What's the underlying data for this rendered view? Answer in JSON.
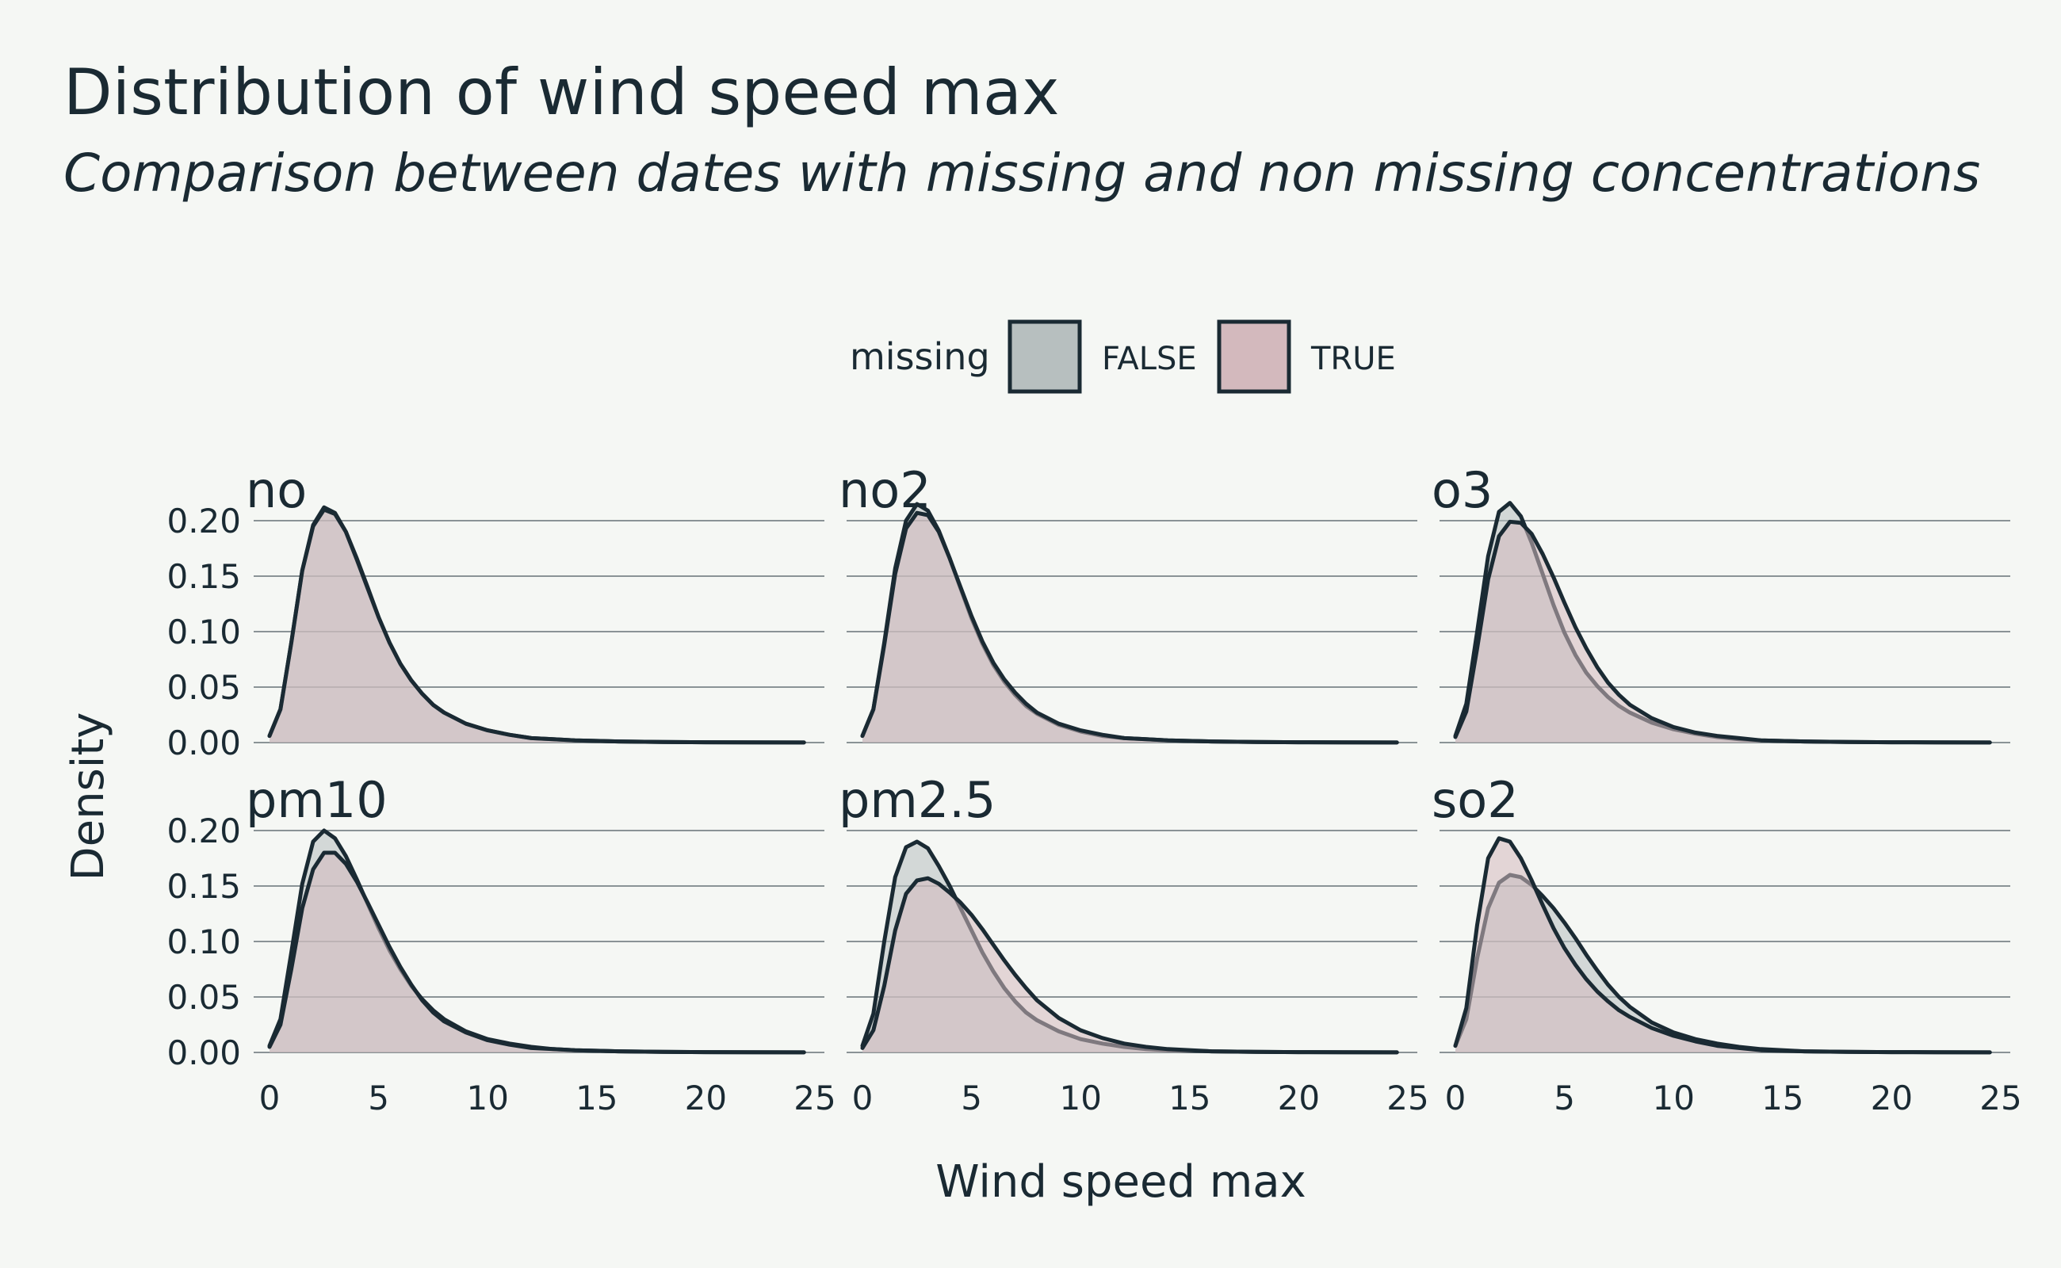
{
  "chart_data": {
    "type": "area",
    "title": "Distribution of wind speed max",
    "subtitle": "Comparison between dates with missing and non missing concentrations",
    "xlabel": "Wind speed max",
    "ylabel": "Density",
    "xlim": [
      0,
      25
    ],
    "ylim": [
      0,
      0.22
    ],
    "xticks": [
      0,
      5,
      10,
      15,
      20,
      25
    ],
    "yticks": [
      0.0,
      0.05,
      0.1,
      0.15,
      0.2
    ],
    "ytick_labels": [
      "0.00",
      "0.05",
      "0.10",
      "0.15",
      "0.20"
    ],
    "grid": "horizontal",
    "legend": {
      "title": "missing",
      "position": "top",
      "entries": [
        {
          "label": "FALSE",
          "color": "#b7bfbf"
        },
        {
          "label": "TRUE",
          "color": "#d3b9bd"
        }
      ]
    },
    "x": [
      0,
      0.5,
      1,
      1.5,
      2,
      2.5,
      3,
      3.5,
      4,
      4.5,
      5,
      5.5,
      6,
      6.5,
      7,
      7.5,
      8,
      9,
      10,
      11,
      12,
      13,
      14,
      16,
      18,
      20,
      22,
      24.5
    ],
    "panels": [
      {
        "name": "no",
        "series": [
          {
            "name": "FALSE",
            "values": [
              0.006,
              0.03,
              0.09,
              0.155,
              0.196,
              0.212,
              0.207,
              0.19,
              0.166,
              0.14,
              0.113,
              0.09,
              0.071,
              0.056,
              0.044,
              0.034,
              0.027,
              0.017,
              0.011,
              0.007,
              0.004,
              0.003,
              0.002,
              0.001,
              0.0005,
              0.0003,
              0.0002,
              0.0001
            ]
          },
          {
            "name": "TRUE",
            "values": [
              0.006,
              0.03,
              0.09,
              0.155,
              0.195,
              0.21,
              0.206,
              0.19,
              0.165,
              0.139,
              0.113,
              0.09,
              0.071,
              0.056,
              0.044,
              0.034,
              0.027,
              0.017,
              0.011,
              0.007,
              0.004,
              0.003,
              0.002,
              0.001,
              0.0005,
              0.0003,
              0.0002,
              0.0001
            ]
          }
        ]
      },
      {
        "name": "no2",
        "series": [
          {
            "name": "FALSE",
            "values": [
              0.006,
              0.03,
              0.09,
              0.157,
              0.2,
              0.215,
              0.209,
              0.191,
              0.166,
              0.139,
              0.112,
              0.089,
              0.07,
              0.055,
              0.043,
              0.033,
              0.026,
              0.016,
              0.01,
              0.006,
              0.004,
              0.003,
              0.002,
              0.001,
              0.0005,
              0.0003,
              0.0002,
              0.0001
            ]
          },
          {
            "name": "TRUE",
            "values": [
              0.006,
              0.03,
              0.088,
              0.152,
              0.193,
              0.207,
              0.205,
              0.19,
              0.166,
              0.14,
              0.114,
              0.091,
              0.072,
              0.057,
              0.045,
              0.035,
              0.027,
              0.017,
              0.011,
              0.007,
              0.004,
              0.003,
              0.002,
              0.001,
              0.0005,
              0.0003,
              0.0002,
              0.0001
            ]
          }
        ]
      },
      {
        "name": "o3",
        "series": [
          {
            "name": "FALSE",
            "values": [
              0.006,
              0.035,
              0.1,
              0.168,
              0.208,
              0.216,
              0.204,
              0.18,
              0.152,
              0.124,
              0.099,
              0.079,
              0.063,
              0.051,
              0.041,
              0.033,
              0.027,
              0.018,
              0.012,
              0.008,
              0.005,
              0.003,
              0.002,
              0.001,
              0.0005,
              0.0003,
              0.0002,
              0.0001
            ]
          },
          {
            "name": "TRUE",
            "values": [
              0.005,
              0.028,
              0.085,
              0.147,
              0.186,
              0.199,
              0.198,
              0.188,
              0.17,
              0.149,
              0.126,
              0.104,
              0.085,
              0.068,
              0.054,
              0.043,
              0.034,
              0.022,
              0.014,
              0.009,
              0.006,
              0.004,
              0.002,
              0.001,
              0.0005,
              0.0003,
              0.0002,
              0.0001
            ]
          }
        ]
      },
      {
        "name": "pm10",
        "series": [
          {
            "name": "FALSE",
            "values": [
              0.006,
              0.03,
              0.09,
              0.152,
              0.19,
              0.2,
              0.193,
              0.177,
              0.156,
              0.134,
              0.112,
              0.092,
              0.075,
              0.06,
              0.048,
              0.038,
              0.03,
              0.019,
              0.012,
              0.008,
              0.005,
              0.003,
              0.002,
              0.001,
              0.0005,
              0.0003,
              0.0002,
              0.0001
            ]
          },
          {
            "name": "TRUE",
            "values": [
              0.005,
              0.025,
              0.075,
              0.13,
              0.165,
              0.18,
              0.18,
              0.17,
              0.154,
              0.135,
              0.115,
              0.095,
              0.077,
              0.061,
              0.047,
              0.036,
              0.028,
              0.018,
              0.011,
              0.007,
              0.004,
              0.003,
              0.002,
              0.001,
              0.0005,
              0.0003,
              0.0002,
              0.0001
            ]
          }
        ]
      },
      {
        "name": "pm2.5",
        "series": [
          {
            "name": "FALSE",
            "values": [
              0.006,
              0.035,
              0.1,
              0.158,
              0.185,
              0.19,
              0.184,
              0.168,
              0.15,
              0.13,
              0.11,
              0.09,
              0.073,
              0.058,
              0.046,
              0.036,
              0.029,
              0.019,
              0.012,
              0.008,
              0.005,
              0.003,
              0.002,
              0.001,
              0.0005,
              0.0003,
              0.0002,
              0.0001
            ]
          },
          {
            "name": "TRUE",
            "values": [
              0.004,
              0.02,
              0.06,
              0.11,
              0.143,
              0.155,
              0.157,
              0.152,
              0.144,
              0.135,
              0.124,
              0.111,
              0.097,
              0.083,
              0.07,
              0.058,
              0.047,
              0.031,
              0.02,
              0.013,
              0.008,
              0.005,
              0.003,
              0.001,
              0.0005,
              0.0003,
              0.0002,
              0.0001
            ]
          }
        ]
      },
      {
        "name": "so2",
        "series": [
          {
            "name": "FALSE",
            "values": [
              0.006,
              0.03,
              0.085,
              0.13,
              0.153,
              0.16,
              0.158,
              0.151,
              0.141,
              0.13,
              0.117,
              0.103,
              0.088,
              0.074,
              0.061,
              0.05,
              0.041,
              0.027,
              0.018,
              0.012,
              0.008,
              0.005,
              0.003,
              0.001,
              0.0005,
              0.0003,
              0.0002,
              0.0001
            ]
          },
          {
            "name": "TRUE",
            "values": [
              0.006,
              0.04,
              0.115,
              0.175,
              0.193,
              0.19,
              0.175,
              0.155,
              0.133,
              0.112,
              0.094,
              0.079,
              0.066,
              0.055,
              0.046,
              0.038,
              0.032,
              0.022,
              0.015,
              0.01,
              0.006,
              0.004,
              0.002,
              0.001,
              0.0005,
              0.0003,
              0.0002,
              0.0001
            ]
          }
        ]
      }
    ]
  },
  "style": {
    "background": "#f5f7f4",
    "text_color": "#1a2a33",
    "line_color": "#1a2a33",
    "grid_color": "#8a9396",
    "fill_false": "#b7bfbf",
    "fill_true": "#d3b9bd"
  }
}
